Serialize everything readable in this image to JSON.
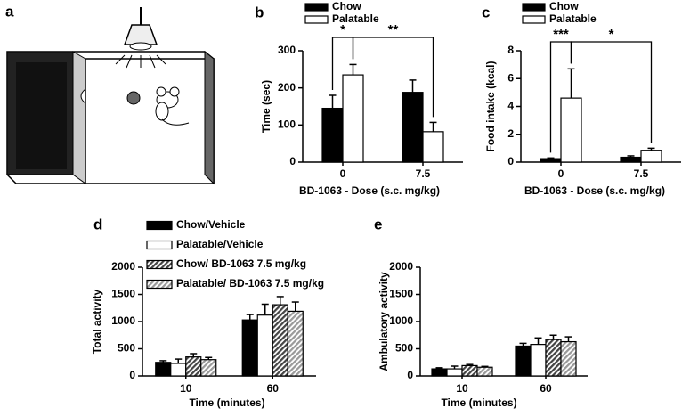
{
  "illustration": {
    "panel": "a"
  },
  "chart_data": [
    {
      "type": "bar",
      "panel": "b",
      "categories": [
        "0",
        "7.5"
      ],
      "series": [
        {
          "name": "Chow",
          "color": "#000000",
          "values": [
            145,
            188
          ],
          "errors": [
            35,
            33
          ]
        },
        {
          "name": "Palatable",
          "color": "#ffffff",
          "values": [
            235,
            82
          ],
          "errors": [
            28,
            25
          ]
        }
      ],
      "ylim": [
        0,
        300
      ],
      "yticks": [
        0,
        100,
        200,
        300
      ],
      "ylabel": "Time (sec)",
      "xlabel": "BD-1063 - Dose (s.c. mg/kg)",
      "annotations": [
        "*",
        "**"
      ],
      "legend": "top"
    },
    {
      "type": "bar",
      "panel": "c",
      "categories": [
        "0",
        "7.5"
      ],
      "series": [
        {
          "name": "Chow",
          "color": "#000000",
          "values": [
            0.25,
            0.35
          ],
          "errors": [
            0.05,
            0.1
          ]
        },
        {
          "name": "Palatable",
          "color": "#ffffff",
          "values": [
            4.6,
            0.85
          ],
          "errors": [
            2.1,
            0.15
          ]
        }
      ],
      "ylim": [
        0,
        8
      ],
      "yticks": [
        0,
        2,
        4,
        6,
        8
      ],
      "ylabel": "Food intake (kcal)",
      "xlabel": "BD-1063 - Dose (s.c. mg/kg)",
      "annotations": [
        "***",
        "*"
      ],
      "legend": "top"
    },
    {
      "type": "bar",
      "panel": "d",
      "categories": [
        "10",
        "60"
      ],
      "series": [
        {
          "name": "Chow/Vehicle",
          "color": "#000000",
          "values": [
            250,
            1030
          ],
          "errors": [
            30,
            100
          ]
        },
        {
          "name": "Palatable/Vehicle",
          "color": "#ffffff",
          "values": [
            230,
            1120
          ],
          "errors": [
            80,
            200
          ]
        },
        {
          "name": "Chow/ BD-1063 7.5 mg/kg",
          "color": "#444444",
          "hatch": true,
          "values": [
            350,
            1310
          ],
          "errors": [
            60,
            150
          ]
        },
        {
          "name": "Palatable/ BD-1063 7.5 mg/kg",
          "color": "#999999",
          "hatch": true,
          "values": [
            300,
            1190
          ],
          "errors": [
            40,
            170
          ]
        }
      ],
      "ylim": [
        0,
        2000
      ],
      "yticks": [
        0,
        500,
        1000,
        1500,
        2000
      ],
      "ylabel": "Total activity",
      "xlabel": "Time (minutes)",
      "legend": "top-left"
    },
    {
      "type": "bar",
      "panel": "e",
      "categories": [
        "10",
        "60"
      ],
      "series": [
        {
          "color": "#000000",
          "values": [
            130,
            550
          ],
          "errors": [
            20,
            50
          ]
        },
        {
          "color": "#ffffff",
          "values": [
            130,
            580
          ],
          "errors": [
            50,
            120
          ]
        },
        {
          "color": "#444444",
          "hatch": true,
          "values": [
            190,
            670
          ],
          "errors": [
            20,
            80
          ]
        },
        {
          "color": "#999999",
          "hatch": true,
          "values": [
            160,
            630
          ],
          "errors": [
            15,
            90
          ]
        }
      ],
      "ylim": [
        0,
        2000
      ],
      "yticks": [
        0,
        500,
        1000,
        1500,
        2000
      ],
      "ylabel": "Ambulatory activity",
      "xlabel": "Time (minutes)"
    }
  ]
}
